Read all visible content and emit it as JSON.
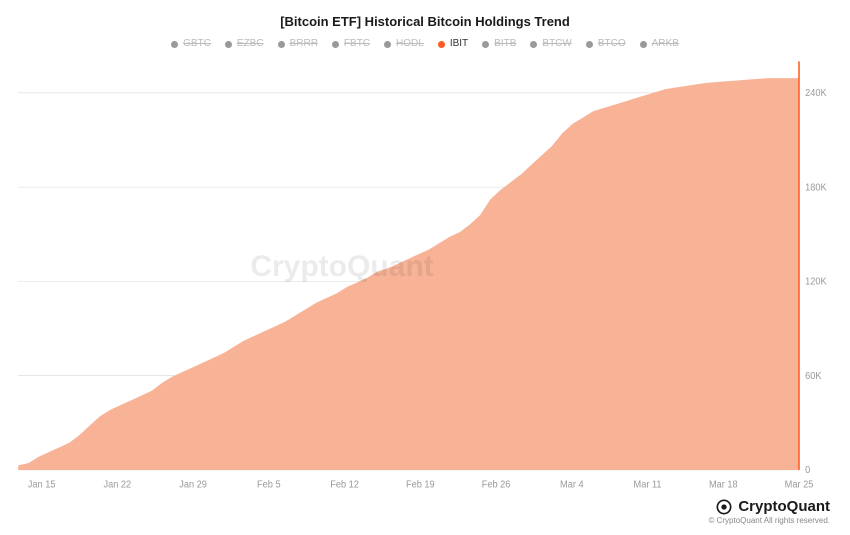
{
  "title": "[Bitcoin ETF] Historical Bitcoin Holdings Trend",
  "legend": {
    "items": [
      {
        "label": "GBTC",
        "color": "#999999",
        "inactive": true
      },
      {
        "label": "EZBC",
        "color": "#999999",
        "inactive": true
      },
      {
        "label": "BRRR",
        "color": "#999999",
        "inactive": true
      },
      {
        "label": "FBTC",
        "color": "#999999",
        "inactive": true
      },
      {
        "label": "HODL",
        "color": "#999999",
        "inactive": true
      },
      {
        "label": "IBIT",
        "color": "#ff5a1f",
        "inactive": false
      },
      {
        "label": "BITB",
        "color": "#999999",
        "inactive": true
      },
      {
        "label": "BTCW",
        "color": "#999999",
        "inactive": true
      },
      {
        "label": "BTCO",
        "color": "#999999",
        "inactive": true
      },
      {
        "label": "ARKB",
        "color": "#999999",
        "inactive": true
      }
    ],
    "inactive_text_color": "#bbbbbb",
    "active_text_color": "#333333"
  },
  "chart": {
    "type": "area",
    "background_color": "#ffffff",
    "grid_color": "#d8d8d8",
    "fill_color": "#f8b397",
    "fill_opacity": 1.0,
    "line_color": "#f8b397",
    "line_width": 1,
    "right_edge_color": "#ff5a1f",
    "x": {
      "ticks": [
        "Jan 15",
        "Jan 22",
        "Jan 29",
        "Feb 5",
        "Feb 12",
        "Feb 19",
        "Feb 26",
        "Mar 4",
        "Mar 11",
        "Mar 18",
        "Mar 25"
      ],
      "label_fontsize": 9,
      "label_color": "#999999"
    },
    "y": {
      "ticks": [
        0,
        60000,
        120000,
        180000,
        240000
      ],
      "tick_labels": [
        "0",
        "60K",
        "120K",
        "180K",
        "240K"
      ],
      "lim": [
        0,
        260000
      ],
      "label_fontsize": 9,
      "label_color": "#999999"
    },
    "series": {
      "name": "IBIT",
      "values": [
        2500,
        4000,
        8000,
        11000,
        14000,
        17000,
        22000,
        28000,
        34000,
        38000,
        41000,
        44000,
        47000,
        50000,
        55000,
        59000,
        62000,
        65000,
        68000,
        71000,
        74000,
        78000,
        82000,
        85000,
        88000,
        91000,
        94000,
        98000,
        102000,
        106000,
        109000,
        112000,
        116000,
        119000,
        122000,
        126000,
        128000,
        131000,
        134000,
        137000,
        140000,
        144000,
        148000,
        151000,
        156000,
        162000,
        172000,
        178000,
        183000,
        188000,
        194000,
        200000,
        206000,
        214000,
        220000,
        224000,
        228000,
        230000,
        232000,
        234000,
        236000,
        238000,
        240000,
        242000,
        243000,
        244000,
        245000,
        246000,
        246500,
        247000,
        247500,
        248000,
        248500,
        249000,
        249000,
        249000,
        249000
      ]
    }
  },
  "watermark": "CryptoQuant",
  "footer": {
    "brand": "CryptoQuant",
    "copyright": "© CryptoQuant All rights reserved."
  }
}
